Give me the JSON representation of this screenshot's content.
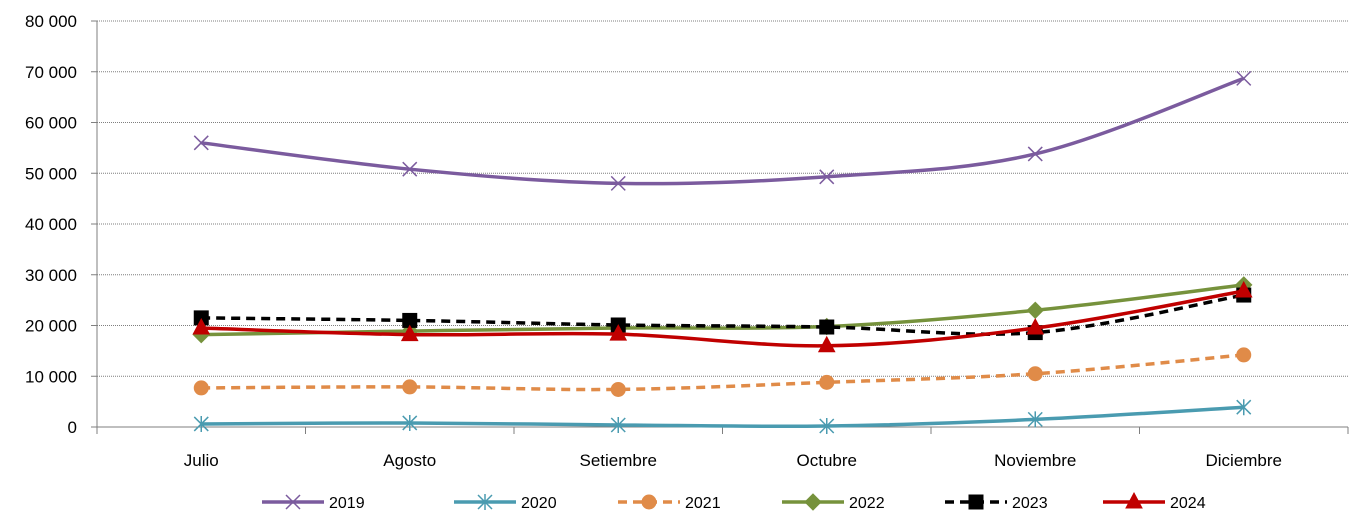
{
  "chart_data": {
    "type": "line",
    "title": "",
    "xlabel": "",
    "ylabel": "",
    "categories": [
      "Julio",
      "Agosto",
      "Setiembre",
      "Octubre",
      "Noviembre",
      "Diciembre"
    ],
    "ylim": [
      0,
      80000
    ],
    "yticks": [
      0,
      10000,
      20000,
      30000,
      40000,
      50000,
      60000,
      70000,
      80000
    ],
    "ytick_labels": [
      "0",
      "10 000",
      "20 000",
      "30 000",
      "40 000",
      "50 000",
      "60 000",
      "70 000",
      "80 000"
    ],
    "grid": "horizontal dotted",
    "legend": "bottom",
    "series": [
      {
        "name": "2019",
        "values": [
          56000,
          50800,
          48000,
          49300,
          53800,
          68700
        ],
        "color": "#7b5b9e",
        "dash": "solid",
        "marker": "x"
      },
      {
        "name": "2020",
        "values": [
          600,
          800,
          400,
          200,
          1500,
          3900
        ],
        "color": "#4a9bb0",
        "dash": "solid",
        "marker": "asterisk"
      },
      {
        "name": "2021",
        "values": [
          7700,
          7900,
          7400,
          8800,
          10500,
          14200
        ],
        "color": "#e08b48",
        "dash": "dashed",
        "marker": "circle"
      },
      {
        "name": "2022",
        "values": [
          18200,
          18900,
          19500,
          19800,
          23000,
          28000
        ],
        "color": "#76923c",
        "dash": "solid",
        "marker": "diamond"
      },
      {
        "name": "2023",
        "values": [
          21500,
          21000,
          20100,
          19700,
          18600,
          26000
        ],
        "color": "#000000",
        "dash": "dashed",
        "marker": "square"
      },
      {
        "name": "2024",
        "values": [
          19500,
          18200,
          18300,
          16000,
          19500,
          26800
        ],
        "color": "#c00000",
        "dash": "solid",
        "marker": "triangle"
      }
    ]
  }
}
